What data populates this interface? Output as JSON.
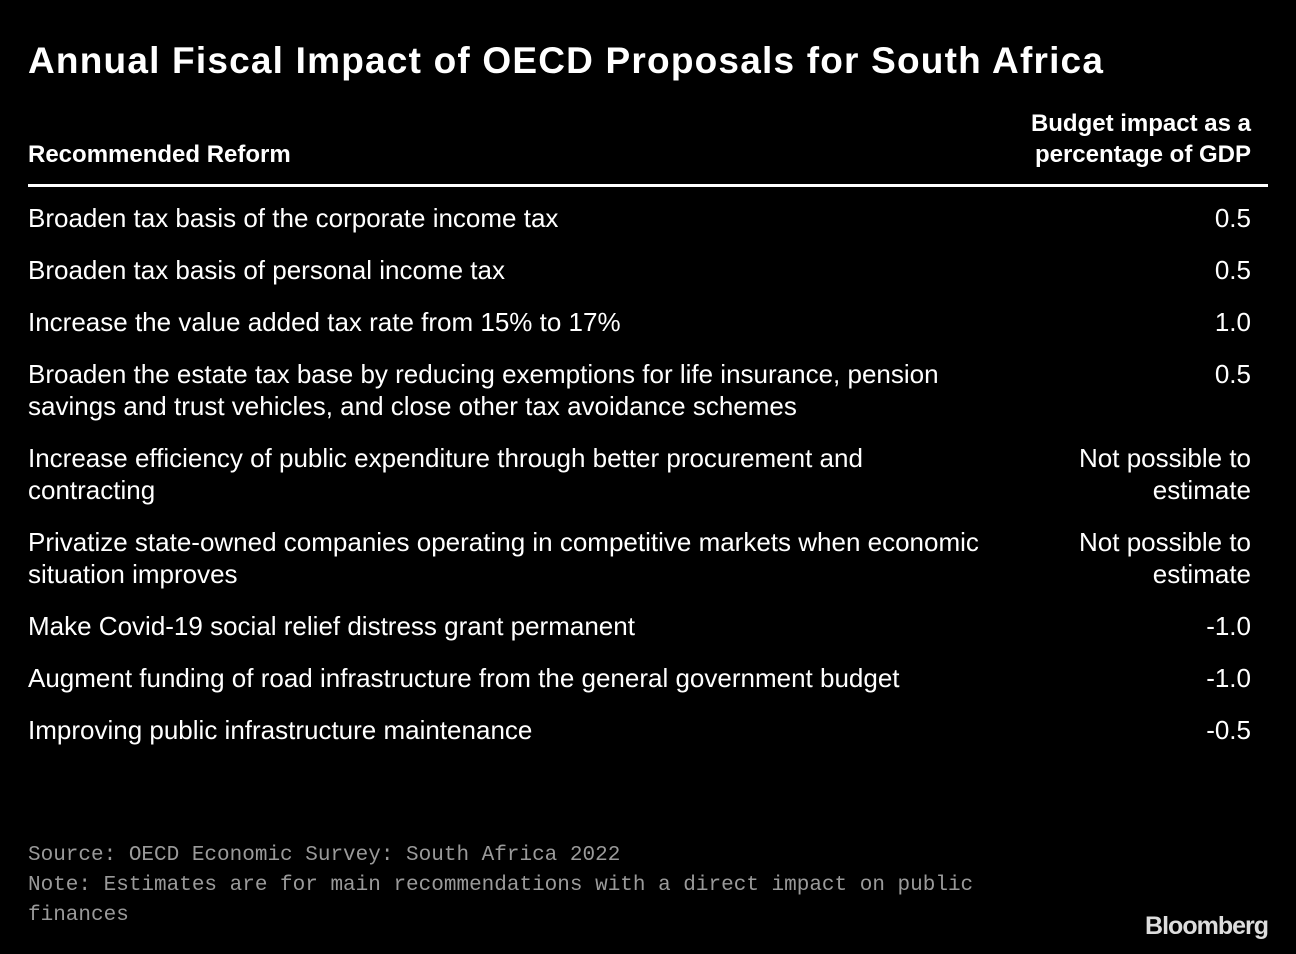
{
  "chart_data": {
    "type": "table",
    "title": "Annual Fiscal Impact of OECD Proposals for South Africa",
    "columns": [
      "Recommended Reform",
      "Budget impact as a percentage of GDP"
    ],
    "rows": [
      {
        "reform": "Broaden tax basis of the corporate income tax",
        "impact": "0.5"
      },
      {
        "reform": "Broaden tax basis of personal income tax",
        "impact": "0.5"
      },
      {
        "reform": "Increase the value added tax rate from 15% to 17%",
        "impact": "1.0"
      },
      {
        "reform": "Broaden the estate tax base by reducing exemptions for life insurance, pension savings and trust vehicles, and close other tax avoidance schemes",
        "impact": "0.5"
      },
      {
        "reform": "Increase efficiency of public expenditure through better procurement and contracting",
        "impact": "Not possible to\nestimate"
      },
      {
        "reform": "Privatize state-owned companies operating in competitive markets when economic situation improves",
        "impact": "Not possible to\nestimate"
      },
      {
        "reform": "Make Covid-19 social relief distress grant permanent",
        "impact": "-1.0"
      },
      {
        "reform": "Augment funding of road infrastructure from the general government budget",
        "impact": "-1.0"
      },
      {
        "reform": "Improving public infrastructure maintenance",
        "impact": "-0.5"
      }
    ],
    "source": "Source: OECD Economic Survey: South Africa 2022",
    "note": "Note: Estimates are for main recommendations with a direct impact on public finances"
  },
  "header": {
    "col1": "Recommended Reform",
    "col2_line1": "Budget impact as a",
    "col2_line2": "percentage of GDP"
  },
  "brand": "Bloomberg"
}
